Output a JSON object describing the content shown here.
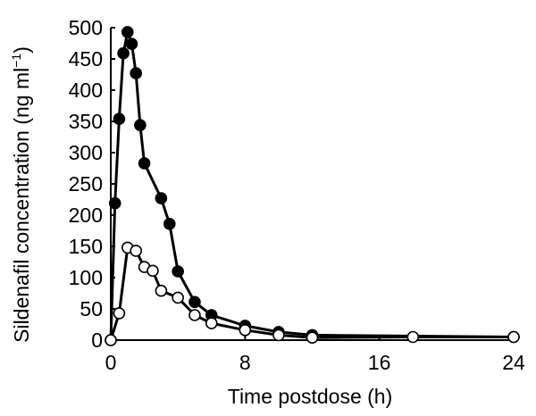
{
  "chart_data": {
    "type": "line",
    "xlabel": "Time postdose (h)",
    "ylabel_main": "Sildenafil concentration (ng ml",
    "ylabel_sup": "−1",
    "ylabel_close": ")",
    "xlim": [
      0,
      24
    ],
    "ylim": [
      0,
      500
    ],
    "xticks": [
      0,
      8,
      16,
      24
    ],
    "yticks": [
      0,
      50,
      100,
      150,
      200,
      250,
      300,
      350,
      400,
      450,
      500
    ],
    "grid": false,
    "legend": "none",
    "series": [
      {
        "marker": "filled-circle",
        "color": "#000000",
        "points": [
          {
            "x": 0,
            "y": 0
          },
          {
            "x": 0.25,
            "y": 219
          },
          {
            "x": 0.5,
            "y": 354
          },
          {
            "x": 0.75,
            "y": 459
          },
          {
            "x": 1.0,
            "y": 493
          },
          {
            "x": 1.25,
            "y": 474
          },
          {
            "x": 1.5,
            "y": 427
          },
          {
            "x": 1.75,
            "y": 344
          },
          {
            "x": 2.0,
            "y": 283
          },
          {
            "x": 3.0,
            "y": 227
          },
          {
            "x": 3.5,
            "y": 186
          },
          {
            "x": 4.0,
            "y": 110
          },
          {
            "x": 5.0,
            "y": 61
          },
          {
            "x": 6.0,
            "y": 40
          },
          {
            "x": 8.0,
            "y": 23
          },
          {
            "x": 10.0,
            "y": 13
          },
          {
            "x": 12.0,
            "y": 8
          },
          {
            "x": 24.0,
            "y": 5
          }
        ]
      },
      {
        "marker": "open-circle",
        "color": "#000000",
        "points": [
          {
            "x": 0,
            "y": 0
          },
          {
            "x": 0.5,
            "y": 43
          },
          {
            "x": 1.0,
            "y": 148
          },
          {
            "x": 1.5,
            "y": 143
          },
          {
            "x": 2.0,
            "y": 117
          },
          {
            "x": 2.5,
            "y": 111
          },
          {
            "x": 3.0,
            "y": 79
          },
          {
            "x": 4.0,
            "y": 68
          },
          {
            "x": 5.0,
            "y": 40
          },
          {
            "x": 6.0,
            "y": 27
          },
          {
            "x": 8.0,
            "y": 16
          },
          {
            "x": 10.0,
            "y": 8
          },
          {
            "x": 12.0,
            "y": 4
          },
          {
            "x": 18.0,
            "y": 5
          },
          {
            "x": 24.0,
            "y": 5
          }
        ]
      }
    ]
  }
}
